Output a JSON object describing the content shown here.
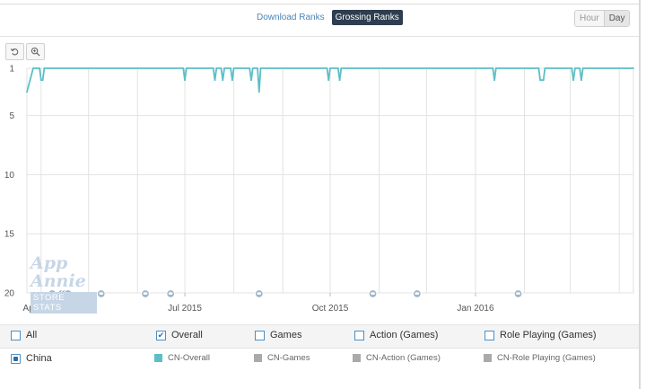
{
  "rank_tabs": {
    "download": "Download Ranks",
    "grossing": "Grossing Ranks",
    "active": "grossing"
  },
  "resolution": {
    "hour": "Hour",
    "day": "Day",
    "active": "day"
  },
  "toolbar": {
    "reset_icon": "reset-zoom-icon",
    "zoom_icon": "zoom-in-icon"
  },
  "watermark": {
    "title": "App Annie",
    "subtitle": "STORE STATS"
  },
  "chart_data": {
    "type": "line",
    "title": "",
    "xlabel": "",
    "ylabel": "",
    "y_inverted": true,
    "ylim": [
      1,
      20
    ],
    "yticks": [
      "1",
      "5",
      "10",
      "15",
      "20"
    ],
    "xlim": [
      "2015-03-23",
      "2016-04-10"
    ],
    "xticks": [
      {
        "date": "2015-04-01",
        "label": "Apr 2015"
      },
      {
        "date": "2015-07-01",
        "label": "Jul 2015"
      },
      {
        "date": "2015-10-01",
        "label": "Oct 2015"
      },
      {
        "date": "2016-01-01",
        "label": "Jan 2016"
      }
    ],
    "grid": true,
    "series": [
      {
        "name": "CN-Overall",
        "color": "#5bbfc6",
        "points": [
          [
            "2015-03-23",
            3
          ],
          [
            "2015-03-25",
            2
          ],
          [
            "2015-03-27",
            1
          ],
          [
            "2015-03-31",
            1
          ],
          [
            "2015-04-01",
            2
          ],
          [
            "2015-04-02",
            2
          ],
          [
            "2015-04-03",
            1
          ],
          [
            "2015-06-30",
            1
          ],
          [
            "2015-07-01",
            2
          ],
          [
            "2015-07-02",
            1
          ],
          [
            "2015-07-19",
            1
          ],
          [
            "2015-07-20",
            2
          ],
          [
            "2015-07-21",
            1
          ],
          [
            "2015-07-24",
            1
          ],
          [
            "2015-07-25",
            2
          ],
          [
            "2015-07-26",
            1
          ],
          [
            "2015-07-30",
            1
          ],
          [
            "2015-07-31",
            2
          ],
          [
            "2015-08-01",
            1
          ],
          [
            "2015-08-11",
            1
          ],
          [
            "2015-08-12",
            2
          ],
          [
            "2015-08-13",
            1
          ],
          [
            "2015-08-16",
            1
          ],
          [
            "2015-08-17",
            3
          ],
          [
            "2015-08-18",
            1
          ],
          [
            "2015-09-29",
            1
          ],
          [
            "2015-09-30",
            2
          ],
          [
            "2015-10-01",
            1
          ],
          [
            "2015-10-06",
            1
          ],
          [
            "2015-10-07",
            2
          ],
          [
            "2015-10-08",
            1
          ],
          [
            "2016-01-12",
            1
          ],
          [
            "2016-01-13",
            2
          ],
          [
            "2016-01-14",
            1
          ],
          [
            "2016-02-10",
            1
          ],
          [
            "2016-02-11",
            2
          ],
          [
            "2016-02-13",
            2
          ],
          [
            "2016-02-14",
            1
          ],
          [
            "2016-03-02",
            1
          ],
          [
            "2016-03-03",
            2
          ],
          [
            "2016-03-04",
            1
          ],
          [
            "2016-03-07",
            1
          ],
          [
            "2016-03-08",
            2
          ],
          [
            "2016-03-09",
            1
          ],
          [
            "2016-04-10",
            1
          ]
        ]
      }
    ],
    "event_markers": [
      "2015-04-08",
      "2015-04-14",
      "2015-04-16",
      "2015-04-18",
      "2015-05-09",
      "2015-06-06",
      "2015-06-22",
      "2015-08-17",
      "2015-10-28",
      "2015-11-25",
      "2016-01-28"
    ]
  },
  "filters": {
    "categories": [
      {
        "label": "All",
        "checked": false
      },
      {
        "label": "Overall",
        "checked": true
      },
      {
        "label": "Games",
        "checked": false
      },
      {
        "label": "Action (Games)",
        "checked": false
      },
      {
        "label": "Role Playing (Games)",
        "checked": false
      }
    ],
    "country": {
      "label": "China",
      "selected": true
    },
    "legend": [
      {
        "label": "CN-Overall",
        "color": "#5bbfc6"
      },
      {
        "label": "CN-Games",
        "color": "#aaaaaa"
      },
      {
        "label": "CN-Action (Games)",
        "color": "#aaaaaa"
      },
      {
        "label": "CN-Role Playing (Games)",
        "color": "#aaaaaa"
      }
    ]
  }
}
